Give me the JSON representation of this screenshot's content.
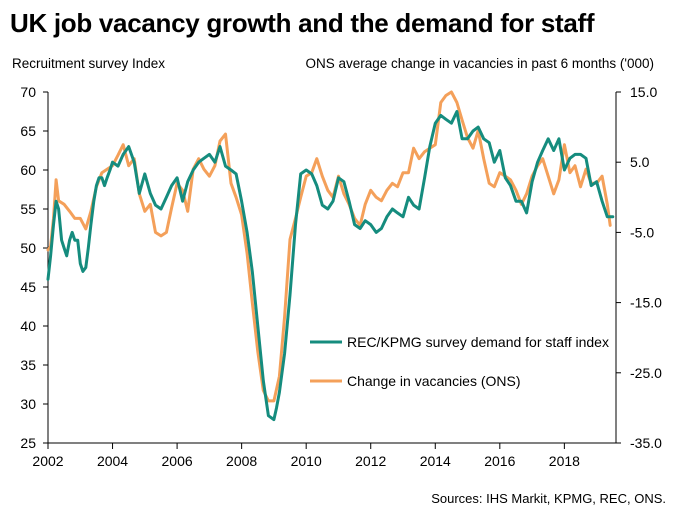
{
  "title": "UK job vacancy growth and the demand for staff",
  "left_axis_label": "Recruitment survey Index",
  "right_axis_label": "ONS average change in vacancies in past 6 months ('000)",
  "source": "Sources: IHS Markit, KPMG, REC, ONS.",
  "colors": {
    "rec": "#158c7e",
    "ons": "#f4a05a",
    "axis": "#000000"
  },
  "chart_data": {
    "type": "line",
    "title": "UK job vacancy growth and the demand for staff",
    "xlabel": "",
    "ylabel": "Recruitment survey Index",
    "y2label": "ONS average change in vacancies in past 6 months ('000)",
    "xlim": [
      2002,
      2019.6
    ],
    "ylim": [
      25,
      70
    ],
    "y2lim": [
      -35,
      15
    ],
    "x_ticks": [
      2002,
      2004,
      2006,
      2008,
      2010,
      2012,
      2014,
      2016,
      2018
    ],
    "x_tick_labels": [
      "2002",
      "2004",
      "2006",
      "2008",
      "2010",
      "2012",
      "2014",
      "2016",
      "2018"
    ],
    "y_ticks": [
      25,
      30,
      35,
      40,
      45,
      50,
      55,
      60,
      65,
      70
    ],
    "y_tick_labels": [
      "25",
      "30",
      "35",
      "40",
      "45",
      "50",
      "55",
      "60",
      "65",
      "70"
    ],
    "y2_ticks": [
      15,
      5,
      -5,
      -15,
      -25,
      -35
    ],
    "y2_tick_labels": [
      "15.0",
      "5.0",
      "-5.0",
      "-15.0",
      "-25.0",
      "-35.0"
    ],
    "grid": false,
    "legend_position": "lower-right",
    "series": [
      {
        "name": "REC/KPMG survey demand for staff index",
        "axis": "left",
        "color": "#158c7e",
        "x": [
          2002.0,
          2002.08,
          2002.17,
          2002.25,
          2002.33,
          2002.42,
          2002.5,
          2002.58,
          2002.67,
          2002.75,
          2002.83,
          2002.92,
          2003.0,
          2003.08,
          2003.17,
          2003.25,
          2003.33,
          2003.42,
          2003.5,
          2003.58,
          2003.67,
          2003.75,
          2003.83,
          2003.92,
          2004.0,
          2004.17,
          2004.33,
          2004.5,
          2004.67,
          2004.83,
          2005.0,
          2005.17,
          2005.33,
          2005.5,
          2005.67,
          2005.83,
          2006.0,
          2006.17,
          2006.33,
          2006.5,
          2006.67,
          2006.83,
          2007.0,
          2007.17,
          2007.33,
          2007.5,
          2007.67,
          2007.83,
          2008.0,
          2008.17,
          2008.33,
          2008.5,
          2008.67,
          2008.83,
          2009.0,
          2009.08,
          2009.17,
          2009.33,
          2009.5,
          2009.67,
          2009.83,
          2010.0,
          2010.17,
          2010.33,
          2010.5,
          2010.67,
          2010.83,
          2011.0,
          2011.17,
          2011.33,
          2011.5,
          2011.67,
          2011.83,
          2012.0,
          2012.17,
          2012.33,
          2012.5,
          2012.67,
          2012.83,
          2013.0,
          2013.17,
          2013.33,
          2013.5,
          2013.67,
          2013.83,
          2014.0,
          2014.17,
          2014.33,
          2014.5,
          2014.67,
          2014.83,
          2015.0,
          2015.17,
          2015.33,
          2015.5,
          2015.67,
          2015.83,
          2016.0,
          2016.17,
          2016.33,
          2016.5,
          2016.67,
          2016.83,
          2017.0,
          2017.17,
          2017.33,
          2017.5,
          2017.67,
          2017.83,
          2018.0,
          2018.17,
          2018.33,
          2018.5,
          2018.67,
          2018.83,
          2019.0,
          2019.17,
          2019.33,
          2019.5
        ],
        "values": [
          46,
          49,
          53,
          56,
          55,
          51,
          50,
          49,
          51,
          52,
          51,
          51,
          48,
          47,
          47.5,
          50,
          53,
          56,
          58,
          59,
          59,
          58,
          59,
          60,
          61,
          60.5,
          62,
          63,
          61,
          57,
          59.5,
          57,
          55.5,
          55,
          56.5,
          58,
          59,
          56,
          58.5,
          60,
          61,
          61.5,
          62,
          61,
          63,
          60.5,
          60,
          59.5,
          56,
          52,
          47,
          40,
          33,
          28.5,
          28,
          29.5,
          31.5,
          36.5,
          44,
          53,
          59.5,
          60,
          59.5,
          58,
          55.5,
          55,
          56,
          59,
          58.5,
          56,
          53,
          52.5,
          53.5,
          53,
          52,
          52.5,
          54,
          55,
          54.5,
          54,
          56.5,
          55.5,
          55,
          59,
          63,
          66,
          67,
          66.5,
          66,
          67.5,
          64,
          64,
          65,
          65.5,
          64,
          63.5,
          61,
          62.5,
          59,
          58,
          56,
          56,
          54.5,
          58.5,
          61,
          62.5,
          64,
          62.5,
          64,
          60,
          61.5,
          62,
          62,
          61.5,
          58,
          58.5,
          56,
          54,
          54
        ]
      },
      {
        "name": "Change in vacancies (ONS)",
        "axis": "right",
        "color": "#f4a05a",
        "x": [
          2002.0,
          2002.08,
          2002.17,
          2002.25,
          2002.33,
          2002.5,
          2002.67,
          2002.83,
          2003.0,
          2003.17,
          2003.33,
          2003.5,
          2003.67,
          2003.83,
          2004.0,
          2004.17,
          2004.33,
          2004.5,
          2004.67,
          2004.83,
          2005.0,
          2005.17,
          2005.33,
          2005.5,
          2005.67,
          2005.83,
          2006.0,
          2006.17,
          2006.33,
          2006.5,
          2006.67,
          2006.83,
          2007.0,
          2007.17,
          2007.33,
          2007.5,
          2007.67,
          2007.83,
          2008.0,
          2008.17,
          2008.33,
          2008.5,
          2008.67,
          2008.83,
          2009.0,
          2009.17,
          2009.33,
          2009.5,
          2009.67,
          2009.83,
          2010.0,
          2010.17,
          2010.33,
          2010.5,
          2010.67,
          2010.83,
          2011.0,
          2011.17,
          2011.33,
          2011.5,
          2011.67,
          2011.83,
          2012.0,
          2012.17,
          2012.33,
          2012.5,
          2012.67,
          2012.83,
          2013.0,
          2013.17,
          2013.33,
          2013.5,
          2013.67,
          2013.83,
          2014.0,
          2014.17,
          2014.33,
          2014.5,
          2014.67,
          2014.83,
          2015.0,
          2015.17,
          2015.33,
          2015.5,
          2015.67,
          2015.83,
          2016.0,
          2016.17,
          2016.33,
          2016.5,
          2016.67,
          2016.83,
          2017.0,
          2017.17,
          2017.33,
          2017.5,
          2017.67,
          2017.83,
          2018.0,
          2018.17,
          2018.33,
          2018.5,
          2018.67,
          2018.83,
          2019.0,
          2019.17,
          2019.33,
          2019.42
        ],
        "values": [
          -7.5,
          -7,
          -3,
          2.5,
          -0.5,
          -1,
          -2,
          -3,
          -3,
          -4.5,
          -2,
          1.5,
          3.5,
          4,
          4.5,
          6,
          7.5,
          4.5,
          5.5,
          0.5,
          -2,
          -1,
          -5,
          -5.5,
          -5,
          -1.5,
          2,
          1,
          -2,
          4,
          5.5,
          4,
          3,
          4.5,
          8,
          9,
          2,
          0,
          -2.5,
          -8,
          -15,
          -22,
          -27.5,
          -29,
          -29,
          -25.5,
          -17,
          -6,
          -3,
          0,
          3,
          3.5,
          5.5,
          3,
          1,
          0,
          3,
          0.5,
          -1,
          -3,
          -4,
          -1,
          1,
          0,
          -0.5,
          1,
          2,
          1.5,
          3.5,
          3.5,
          7,
          5.5,
          6.5,
          7,
          7.5,
          13.5,
          14.5,
          15,
          13.5,
          11,
          8.5,
          7,
          9.5,
          5.5,
          2,
          1.5,
          3.5,
          3,
          2.5,
          1,
          -1,
          0.5,
          3,
          4.5,
          5.5,
          3,
          0.5,
          2.5,
          7.5,
          3.5,
          4.5,
          1.5,
          4,
          2,
          2,
          3,
          -1,
          -4
        ]
      }
    ]
  }
}
